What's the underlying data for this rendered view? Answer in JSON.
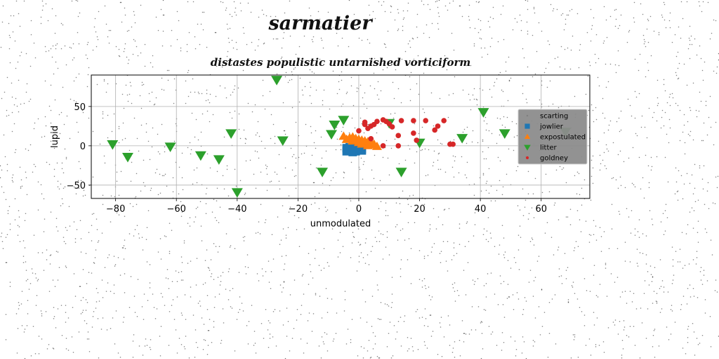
{
  "chart_data": {
    "type": "scatter",
    "suptitle": "sarmatier",
    "title": "distastes populistic untarnished vorticiform",
    "xlabel": "unmodulated",
    "ylabel": "lupid",
    "xlim": [
      -88,
      76
    ],
    "ylim": [
      -67,
      90
    ],
    "xticks": [
      -80,
      -60,
      -40,
      -20,
      0,
      20,
      40,
      60
    ],
    "yticks": [
      -50,
      0,
      50
    ],
    "grid": true,
    "legend_placement": "right",
    "series": [
      {
        "name": "scarting",
        "marker": "point",
        "color": "#7f7f7f",
        "points": []
      },
      {
        "name": "jowlier",
        "marker": "square",
        "color": "#1f77b4",
        "points": [
          [
            -4,
            -3
          ],
          [
            -3,
            -6
          ],
          [
            -2,
            -4
          ],
          [
            -1,
            -7
          ],
          [
            0,
            -5
          ],
          [
            -3,
            -2
          ],
          [
            1,
            -6
          ],
          [
            -2,
            -8
          ],
          [
            0,
            -3
          ],
          [
            -4,
            -7
          ],
          [
            1,
            -4
          ],
          [
            -1,
            -2
          ]
        ]
      },
      {
        "name": "expostulated",
        "marker": "triangle-up",
        "color": "#ff7f0e",
        "points": [
          [
            -5,
            12
          ],
          [
            -4,
            8
          ],
          [
            -3,
            10
          ],
          [
            -2,
            6
          ],
          [
            -1,
            9
          ],
          [
            0,
            4
          ],
          [
            1,
            7
          ],
          [
            2,
            3
          ],
          [
            3,
            5
          ],
          [
            4,
            1
          ],
          [
            5,
            2
          ],
          [
            6,
            -1
          ],
          [
            -2,
            11
          ],
          [
            0,
            8
          ],
          [
            2,
            6
          ],
          [
            4,
            4
          ],
          [
            1,
            2
          ],
          [
            3,
            0
          ]
        ]
      },
      {
        "name": "litter",
        "marker": "triangle-down",
        "color": "#2ca02c",
        "points": [
          [
            -81,
            2
          ],
          [
            -76,
            -14
          ],
          [
            -62,
            -1
          ],
          [
            -52,
            -12
          ],
          [
            -46,
            -17
          ],
          [
            -42,
            16
          ],
          [
            -40,
            -59
          ],
          [
            -27,
            84
          ],
          [
            -25,
            7
          ],
          [
            -12,
            -33
          ],
          [
            -9,
            15
          ],
          [
            -8,
            27
          ],
          [
            -5,
            33
          ],
          [
            10,
            29
          ],
          [
            14,
            -33
          ],
          [
            20,
            4
          ],
          [
            34,
            10
          ],
          [
            41,
            43
          ],
          [
            48,
            16
          ],
          [
            68,
            18
          ]
        ]
      },
      {
        "name": "goldney",
        "marker": "circle",
        "color": "#d62728",
        "points": [
          [
            0,
            19
          ],
          [
            2,
            30
          ],
          [
            2,
            27
          ],
          [
            3,
            22
          ],
          [
            4,
            9
          ],
          [
            4,
            25
          ],
          [
            5,
            27
          ],
          [
            6,
            31
          ],
          [
            8,
            33
          ],
          [
            8,
            0
          ],
          [
            9,
            31
          ],
          [
            10,
            28
          ],
          [
            11,
            24
          ],
          [
            13,
            13
          ],
          [
            13,
            0
          ],
          [
            14,
            32
          ],
          [
            18,
            32
          ],
          [
            18,
            16
          ],
          [
            19,
            7
          ],
          [
            22,
            32
          ],
          [
            25,
            20
          ],
          [
            26,
            25
          ],
          [
            28,
            32
          ],
          [
            30,
            2
          ],
          [
            31,
            2
          ]
        ]
      }
    ]
  }
}
